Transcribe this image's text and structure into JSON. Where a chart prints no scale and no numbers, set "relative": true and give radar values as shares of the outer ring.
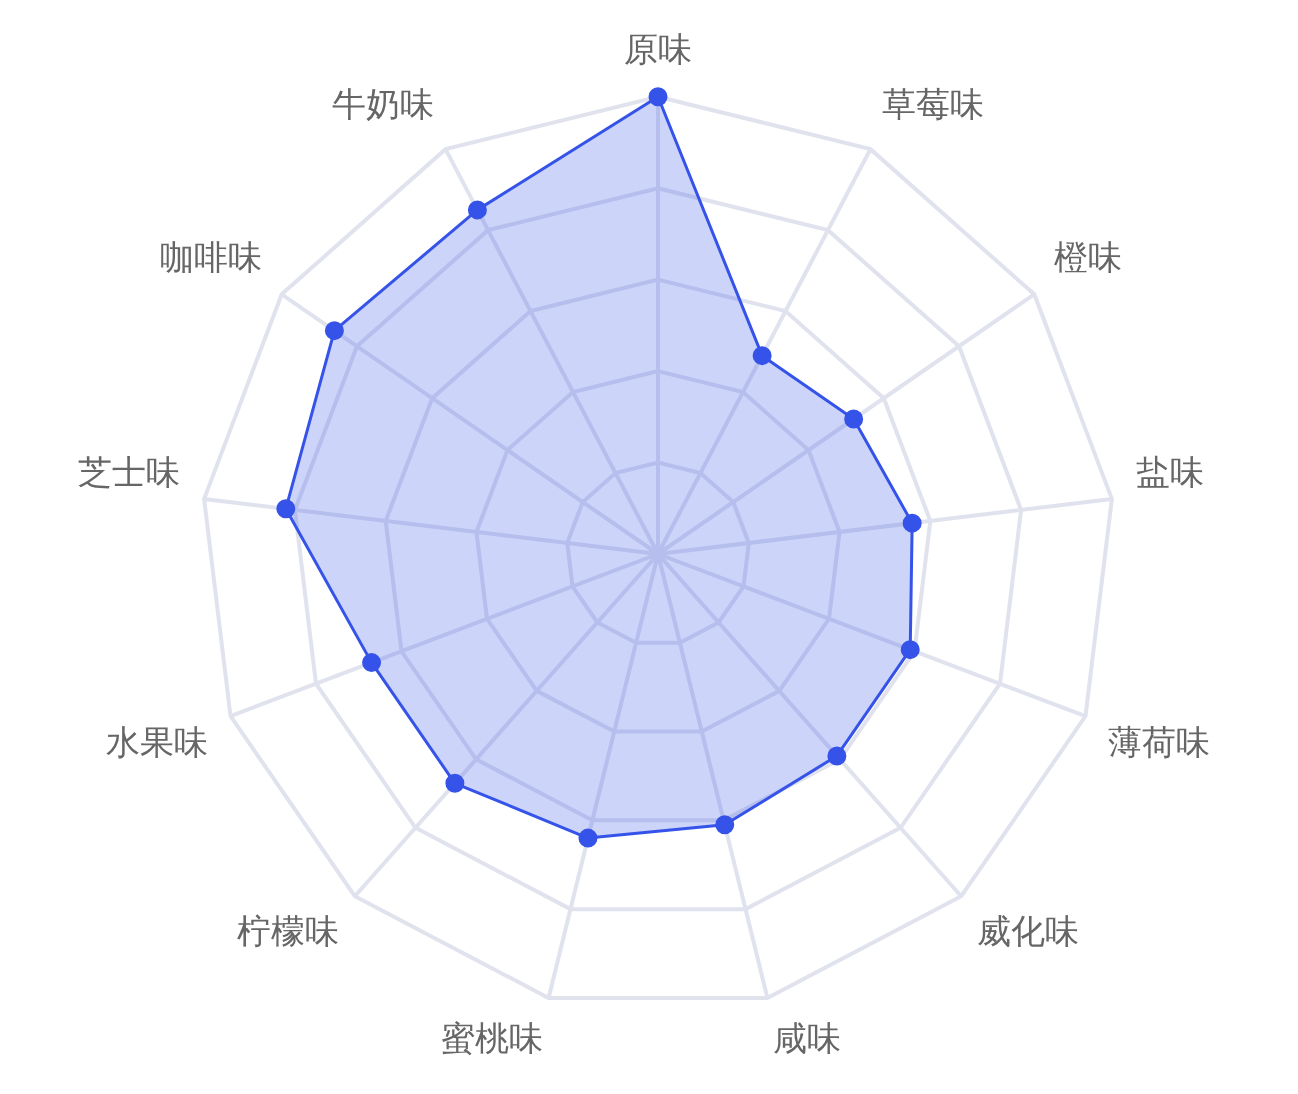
{
  "chart_data": {
    "type": "radar",
    "relative": true,
    "grid": true,
    "marker": "circle",
    "legend": false,
    "categories": [
      "原味",
      "草莓味",
      "橙味",
      "盐味",
      "薄荷味",
      "威化味",
      "咸味",
      "蜜桃味",
      "柠檬味",
      "水果味",
      "芝士味",
      "咖啡味",
      "牛奶味"
    ],
    "series": [
      {
        "color": "#3553e8",
        "values": [
          1.0,
          0.49,
          0.52,
          0.56,
          0.59,
          0.59,
          0.61,
          0.64,
          0.67,
          0.67,
          0.82,
          0.86,
          0.85
        ]
      }
    ]
  }
}
